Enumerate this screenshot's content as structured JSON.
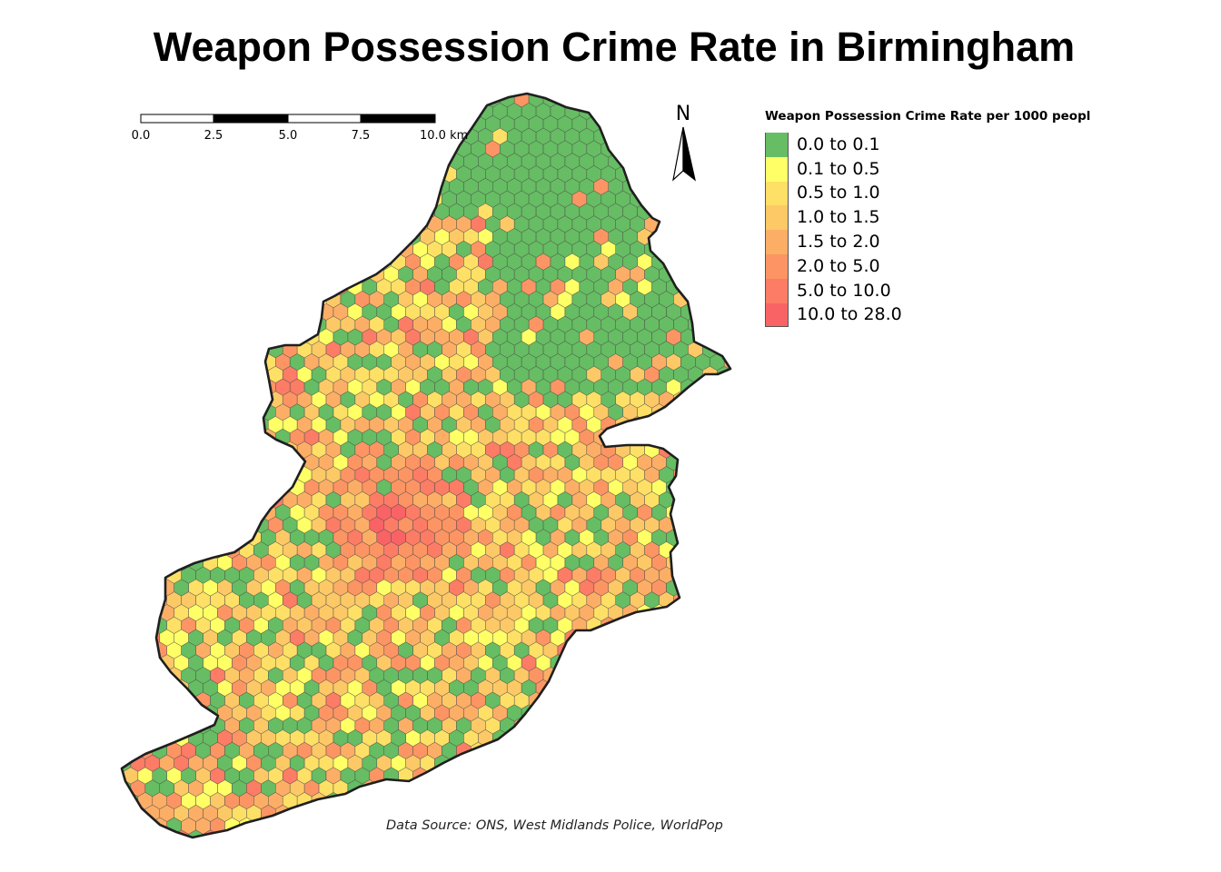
{
  "title": "Weapon Possession Crime Rate in Birmingham",
  "legend": {
    "title": "Weapon Possession Crime Rate per 1000 peopl",
    "classes": [
      {
        "label": "0.0 to 0.1",
        "color": "#66bd63"
      },
      {
        "label": "0.1 to 0.5",
        "color": "#ffff66"
      },
      {
        "label": "0.5 to 1.0",
        "color": "#fee066"
      },
      {
        "label": "1.0 to 1.5",
        "color": "#fdc966"
      },
      {
        "label": "1.5 to 2.0",
        "color": "#fdae66"
      },
      {
        "label": "2.0 to 5.0",
        "color": "#fc9563"
      },
      {
        "label": "5.0 to 10.0",
        "color": "#fc7c66"
      },
      {
        "label": "10.0 to 28.0",
        "color": "#f96366"
      }
    ]
  },
  "scale_bar": {
    "ticks": [
      "0.0",
      "2.5",
      "5.0",
      "7.5",
      "10.0 km"
    ]
  },
  "north_arrow": {
    "label": "N"
  },
  "source": "Data Source: ONS, West Midlands Police, WorldPop"
}
